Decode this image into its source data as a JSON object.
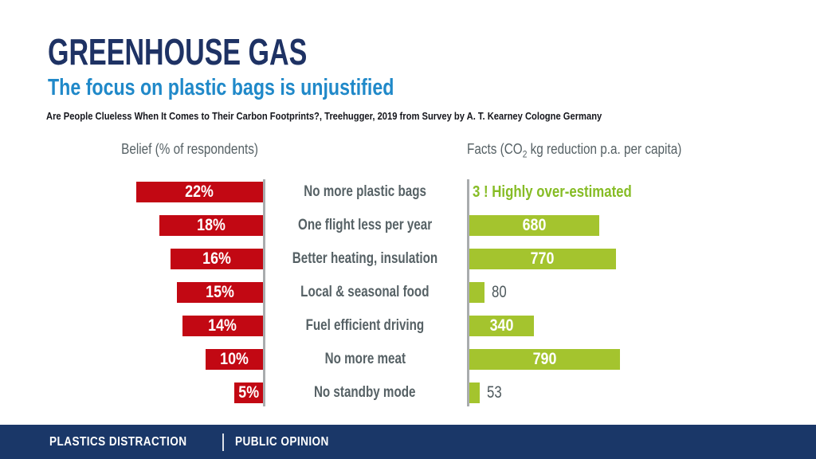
{
  "slide": {
    "title": "GREENHOUSE GAS",
    "subtitle": "The focus on plastic bags is unjustified",
    "source": "Are People Clueless When It Comes to Their Carbon Footprints?, Treehugger, 2019 from Survey by A. T. Kearney Cologne Germany"
  },
  "chart_data": {
    "type": "bar",
    "orientation": "horizontal",
    "layout": "diverging-two-sided",
    "gridlines": false,
    "legend": "none",
    "left_axis_title": "Belief (% of respondents)",
    "right_axis_title": "Facts (CO2 kg reduction p.a. per capita)",
    "right_axis_title_parts": {
      "prefix": "Facts (CO",
      "sub": "2",
      "suffix": " kg reduction p.a. per capita)"
    },
    "categories": [
      "No more plastic bags",
      "One flight less per year",
      "Better heating, insulation",
      "Local & seasonal food",
      "Fuel efficient driving",
      "No more meat",
      "No standby mode"
    ],
    "series": [
      {
        "name": "Belief (% of respondents)",
        "unit": "%",
        "color": "#C20813",
        "values": [
          22,
          18,
          16,
          15,
          14,
          10,
          5
        ]
      },
      {
        "name": "Facts (CO2 kg reduction p.a. per capita)",
        "unit": "kg CO2 p.a. per capita",
        "color": "#A4C42E",
        "values": [
          3,
          680,
          770,
          80,
          340,
          790,
          53
        ]
      }
    ],
    "belief_labels": [
      "22%",
      "18%",
      "16%",
      "15%",
      "14%",
      "10%",
      "5%"
    ],
    "fact_labels": [
      "3 ! Highly over-estimated",
      "680",
      "770",
      "80",
      "340",
      "790",
      "53"
    ],
    "fact_label_styles": [
      "annotation",
      "inside",
      "inside",
      "outside",
      "inside",
      "inside",
      "outside"
    ],
    "left_axis_max": 22,
    "right_axis_max": 790
  },
  "footer": {
    "section": "PLASTICS DISTRACTION",
    "page": "PUBLIC OPINION"
  },
  "colors": {
    "navy": "#1E3264",
    "blue": "#2089C9",
    "red": "#C20813",
    "green": "#A4C42E",
    "anngreen": "#86BC25",
    "axisgray": "#A9ACAE",
    "textgray": "#566165",
    "footernavy": "#1A3768"
  }
}
